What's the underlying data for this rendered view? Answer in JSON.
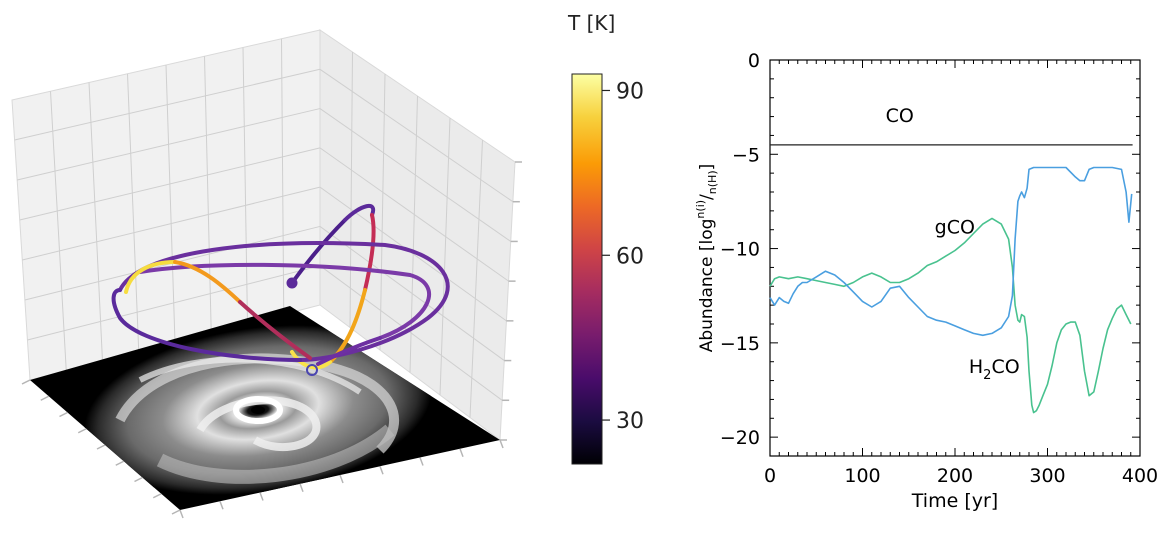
{
  "colorbar": {
    "title": "T [K]",
    "ticks": [
      30,
      60,
      90
    ],
    "range": [
      22,
      93
    ],
    "colormap": [
      "#000004",
      "#1b0c41",
      "#4a0c6b",
      "#781c6d",
      "#a52c60",
      "#cf4446",
      "#ed6925",
      "#fb9b06",
      "#f7d13d",
      "#fcffa4"
    ],
    "markers": [
      "#5b2a9a",
      "#4a45b0"
    ]
  },
  "trajectory3d": {
    "disk_colors": [
      "#000000",
      "#ffffff"
    ],
    "pane_color": "#f1f1f1",
    "grid_color": "#cccccc"
  },
  "chart_data": {
    "type": "line",
    "title": "",
    "xlabel": "Time [yr]",
    "ylabel_parts": [
      "Abundance [log",
      "n(i)",
      "/",
      "n(H)",
      "]"
    ],
    "xlim": [
      0,
      400
    ],
    "ylim": [
      -21,
      0
    ],
    "xticks": [
      0,
      100,
      200,
      300,
      400
    ],
    "yticks": [
      0,
      -5,
      -10,
      -15,
      -20
    ],
    "series": [
      {
        "name": "CO",
        "color": "#222222",
        "x": [
          0,
          392
        ],
        "y": [
          -4.5,
          -4.5
        ]
      },
      {
        "name": "gCO",
        "color": "#49c28f",
        "x": [
          0,
          5,
          10,
          20,
          30,
          40,
          50,
          60,
          70,
          80,
          90,
          100,
          110,
          120,
          130,
          140,
          150,
          160,
          170,
          180,
          190,
          200,
          210,
          220,
          230,
          240,
          250,
          258,
          262,
          265,
          268,
          270,
          272,
          275,
          278,
          280,
          283,
          285,
          288,
          291,
          295,
          300,
          305,
          310,
          315,
          320,
          325,
          330,
          335,
          340,
          345,
          350,
          355,
          360,
          365,
          370,
          375,
          380,
          385,
          390
        ],
        "y": [
          -12.0,
          -11.6,
          -11.5,
          -11.6,
          -11.5,
          -11.6,
          -11.7,
          -11.8,
          -11.9,
          -12.0,
          -11.8,
          -11.5,
          -11.3,
          -11.5,
          -11.8,
          -11.8,
          -11.6,
          -11.3,
          -10.9,
          -10.7,
          -10.4,
          -10.1,
          -9.7,
          -9.2,
          -8.7,
          -8.4,
          -8.7,
          -9.5,
          -11.0,
          -13.0,
          -13.8,
          -13.9,
          -13.5,
          -13.6,
          -14.7,
          -16.5,
          -18.3,
          -18.7,
          -18.6,
          -18.3,
          -17.8,
          -17.2,
          -16.2,
          -15.0,
          -14.3,
          -14.0,
          -13.9,
          -13.9,
          -14.6,
          -16.5,
          -17.8,
          -17.6,
          -16.5,
          -15.3,
          -14.3,
          -13.7,
          -13.2,
          -13.0,
          -13.5,
          -14.0
        ]
      },
      {
        "name": "H2CO",
        "color": "#4a9fe0",
        "x": [
          0,
          5,
          10,
          15,
          20,
          25,
          30,
          35,
          40,
          50,
          60,
          70,
          80,
          90,
          100,
          110,
          120,
          130,
          140,
          150,
          160,
          170,
          180,
          190,
          200,
          210,
          220,
          230,
          240,
          250,
          258,
          262,
          265,
          268,
          270,
          272,
          275,
          278,
          280,
          285,
          300,
          320,
          330,
          335,
          340,
          345,
          350,
          355,
          370,
          380,
          385,
          388,
          391
        ],
        "y": [
          -12.6,
          -13.0,
          -12.6,
          -12.8,
          -12.9,
          -12.4,
          -12.0,
          -11.8,
          -11.8,
          -11.5,
          -11.2,
          -11.4,
          -11.8,
          -12.3,
          -12.8,
          -13.1,
          -12.8,
          -12.1,
          -12.0,
          -12.6,
          -13.1,
          -13.6,
          -13.8,
          -13.9,
          -14.1,
          -14.3,
          -14.5,
          -14.6,
          -14.5,
          -14.2,
          -13.6,
          -12.5,
          -9.5,
          -7.5,
          -7.2,
          -7.0,
          -7.3,
          -6.8,
          -5.8,
          -5.7,
          -5.7,
          -5.7,
          -6.2,
          -6.4,
          -6.4,
          -5.8,
          -5.7,
          -5.7,
          -5.7,
          -5.8,
          -7.0,
          -8.6,
          -7.1
        ]
      }
    ],
    "annotations": [
      {
        "text": "CO",
        "x": 125,
        "y": -3.3
      },
      {
        "text": "gCO",
        "x": 178,
        "y": -9.2
      },
      {
        "text": "H2CO",
        "x": 215,
        "y": -16.6
      }
    ]
  }
}
